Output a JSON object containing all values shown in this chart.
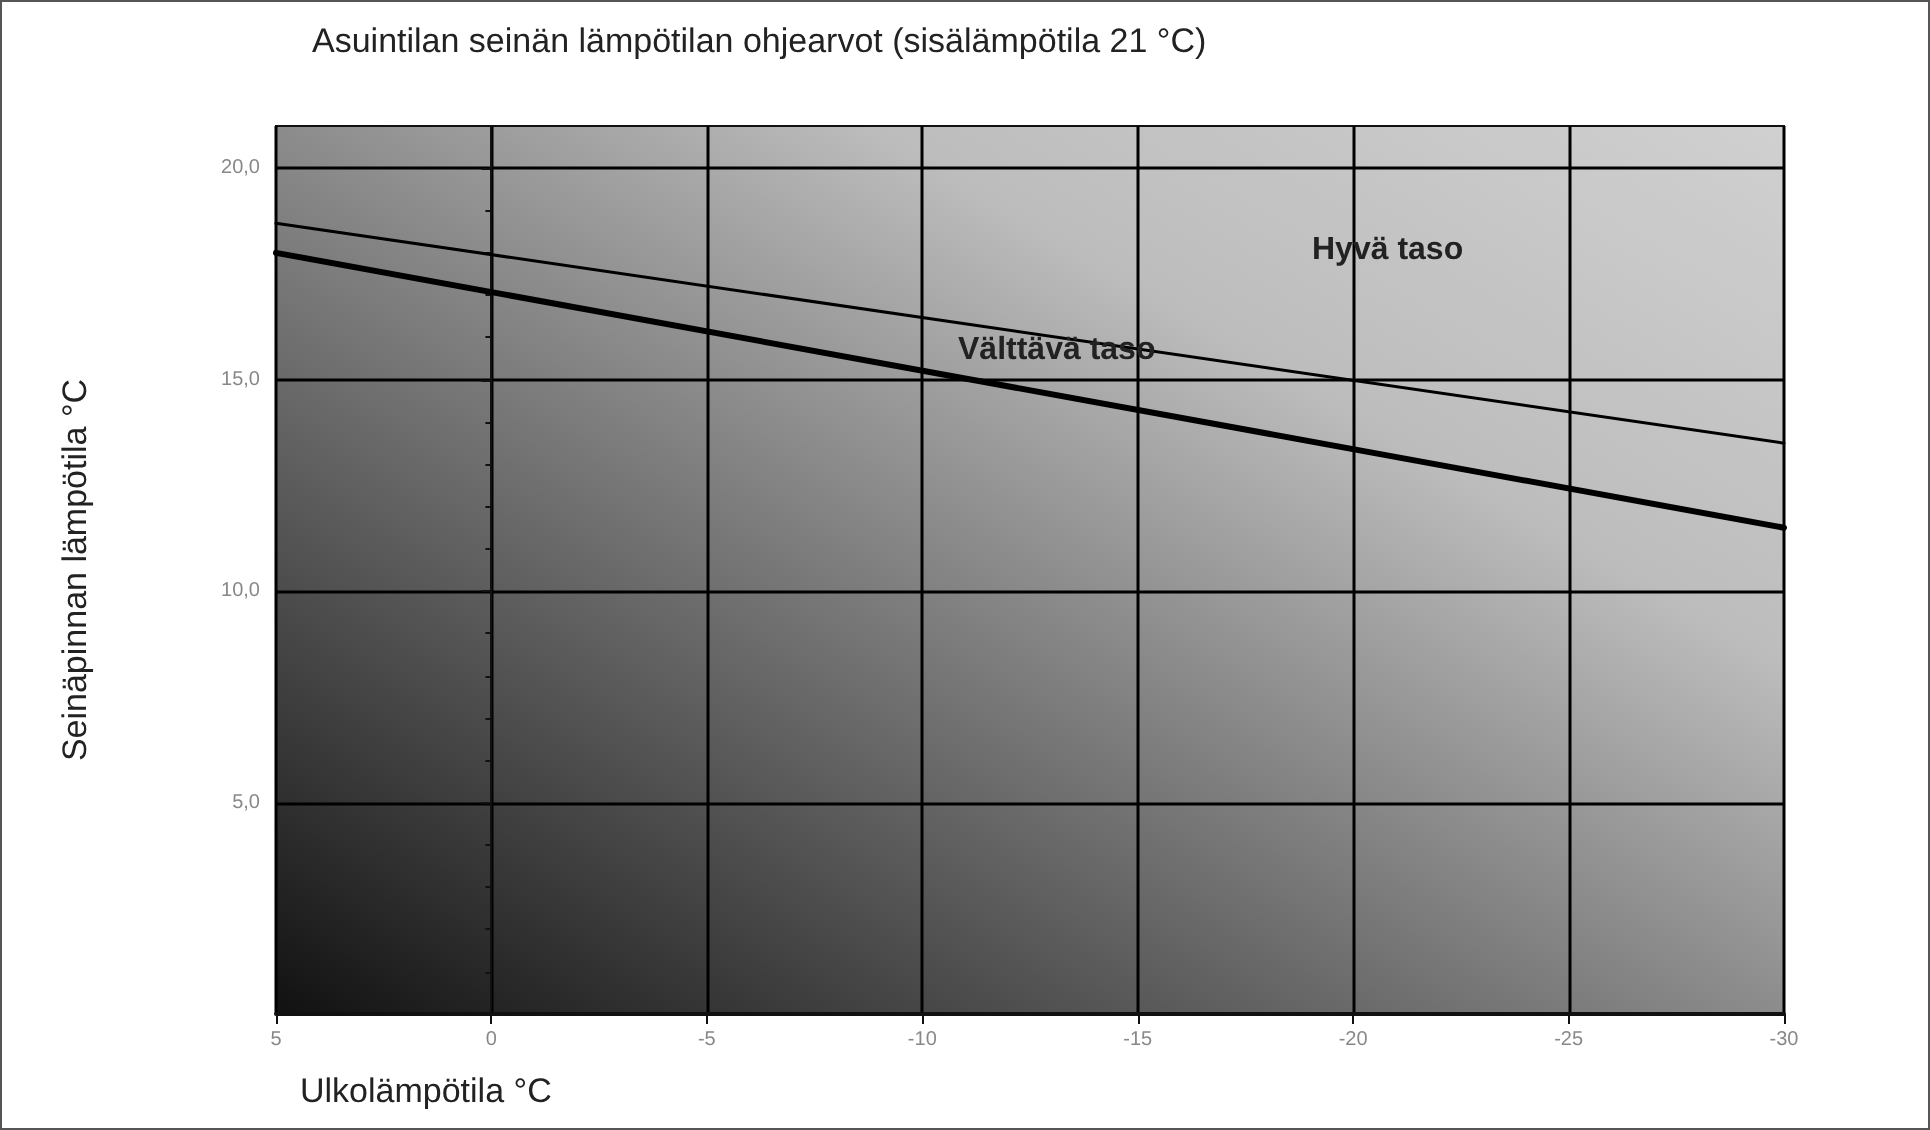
{
  "chart_data": {
    "type": "line",
    "title": "Asuintilan seinän lämpötilan ohjearvot (sisälämpötila 21 °C)",
    "xlabel": "Ulkolämpötila °C",
    "ylabel": "Seinäpinnan lämpötila °C",
    "x": [
      5,
      -30
    ],
    "series": [
      {
        "color": "#000000",
        "values": [
          18.7,
          13.5
        ]
      },
      {
        "color": "#000000",
        "values": [
          18.0,
          11.5
        ]
      }
    ],
    "xlim": [
      5,
      -30
    ],
    "xticks": [
      5,
      0,
      -5,
      -10,
      -15,
      -20,
      -25,
      -30
    ],
    "ylim": [
      0,
      21
    ],
    "yticks": [
      {
        "value": 0,
        "label": null
      },
      {
        "value": 5,
        "label": "5,0"
      },
      {
        "value": 10,
        "label": "10,0"
      },
      {
        "value": 15,
        "label": "15,0"
      },
      {
        "value": 20,
        "label": "20,0"
      }
    ],
    "annotations": [
      "Hyvä taso",
      "Välttävä taso"
    ],
    "grid": true,
    "marker": "none",
    "line_style": "solid"
  }
}
